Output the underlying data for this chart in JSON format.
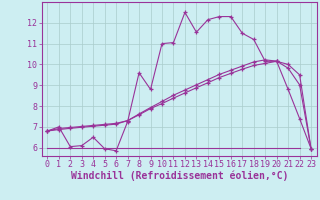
{
  "title": "",
  "xlabel": "Windchill (Refroidissement éolien,°C)",
  "bg_color": "#cdeef2",
  "line_color": "#993399",
  "grid_color": "#aacccc",
  "xlim": [
    -0.5,
    23.5
  ],
  "ylim": [
    5.6,
    13.0
  ],
  "xticks": [
    0,
    1,
    2,
    3,
    4,
    5,
    6,
    7,
    8,
    9,
    10,
    11,
    12,
    13,
    14,
    15,
    16,
    17,
    18,
    19,
    20,
    21,
    22,
    23
  ],
  "yticks": [
    6,
    7,
    8,
    9,
    10,
    11,
    12
  ],
  "series1_x": [
    0,
    1,
    2,
    3,
    4,
    5,
    6,
    7,
    8,
    9,
    10,
    11,
    12,
    13,
    14,
    15,
    16,
    17,
    18,
    19,
    20,
    21,
    22,
    23
  ],
  "series1_y": [
    6.8,
    7.0,
    6.05,
    6.1,
    6.5,
    5.95,
    5.85,
    7.25,
    9.6,
    8.8,
    11.0,
    11.05,
    12.5,
    11.55,
    12.15,
    12.3,
    12.3,
    11.5,
    11.2,
    10.15,
    10.15,
    8.8,
    7.4,
    5.95
  ],
  "series2_x": [
    0,
    1,
    2,
    3,
    4,
    5,
    6,
    7,
    8,
    9,
    10,
    11,
    12,
    13,
    14,
    15,
    16,
    17,
    18,
    19,
    20,
    21,
    22,
    23
  ],
  "series2_y": [
    6.8,
    6.87,
    6.93,
    6.98,
    7.03,
    7.08,
    7.13,
    7.3,
    7.58,
    7.88,
    8.12,
    8.38,
    8.63,
    8.88,
    9.12,
    9.37,
    9.57,
    9.77,
    9.95,
    10.05,
    10.15,
    10.0,
    9.5,
    5.95
  ],
  "series3_x": [
    0,
    1,
    2,
    3,
    4,
    5,
    6,
    7,
    8,
    9,
    10,
    11,
    12,
    13,
    14,
    15,
    16,
    17,
    18,
    19,
    20,
    21,
    22,
    23
  ],
  "series3_y": [
    6.8,
    6.92,
    6.97,
    7.02,
    7.07,
    7.12,
    7.17,
    7.3,
    7.62,
    7.93,
    8.22,
    8.52,
    8.77,
    9.02,
    9.27,
    9.52,
    9.72,
    9.92,
    10.12,
    10.22,
    10.16,
    9.82,
    9.02,
    5.95
  ],
  "flat_line_x": [
    0,
    22
  ],
  "flat_line_y": [
    6.0,
    6.0
  ],
  "xlabel_fontsize": 7,
  "tick_fontsize": 6,
  "marker": "+"
}
